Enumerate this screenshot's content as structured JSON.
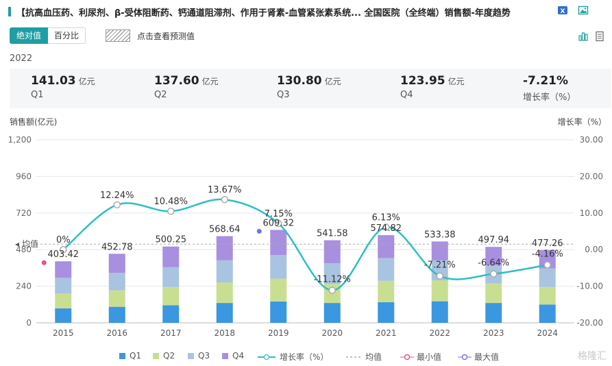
{
  "header": {
    "title": "【抗高血压药、利尿剂、β-受体阻断药、钙通道阻滞剂、作用于肾素-血管紧张素系统...   全国医院（全终端）销售额-年度趋势"
  },
  "controls": {
    "absolute_label": "绝对值",
    "percent_label": "百分比",
    "forecast_label": "点击查看预测值"
  },
  "summary": {
    "year": "2022",
    "items": [
      {
        "value": "141.03",
        "unit": "亿元",
        "label": "Q1"
      },
      {
        "value": "137.60",
        "unit": "亿元",
        "label": "Q2"
      },
      {
        "value": "130.80",
        "unit": "亿元",
        "label": "Q3"
      },
      {
        "value": "123.95",
        "unit": "亿元",
        "label": "Q4"
      },
      {
        "value": "-7.21%",
        "unit": "",
        "label": "增长率（%）"
      }
    ]
  },
  "colors": {
    "accent": "#1f9ea3",
    "q1": "#3a97e0",
    "q2": "#c8df92",
    "q3": "#a9c4e0",
    "q4": "#a98fe0",
    "growth_line": "#2bbfc4",
    "min_marker": "#e84f8b",
    "max_marker": "#7070e8"
  },
  "chart_data": {
    "type": "bar",
    "stacked": true,
    "categories": [
      "2015",
      "2016",
      "2017",
      "2018",
      "2019",
      "2020",
      "2021",
      "2022",
      "2023",
      "2024"
    ],
    "series": [
      {
        "name": "Q1",
        "values": [
          95,
          105,
          115,
          130,
          140,
          130,
          135,
          141.03,
          130,
          120
        ]
      },
      {
        "name": "Q2",
        "values": [
          98,
          108,
          120,
          135,
          150,
          125,
          140,
          137.6,
          128,
          115
        ]
      },
      {
        "name": "Q3",
        "values": [
          102,
          115,
          130,
          145,
          155,
          135,
          150,
          130.8,
          120,
          122
        ]
      },
      {
        "name": "Q4",
        "values": [
          108.42,
          124.78,
          135.25,
          158.64,
          164.32,
          151.58,
          149.82,
          123.95,
          119.94,
          120.26
        ]
      }
    ],
    "totals": [
      403.42,
      452.78,
      500.25,
      568.64,
      609.32,
      541.58,
      574.82,
      533.38,
      497.94,
      477.26
    ],
    "total_labels": [
      "403.42",
      "452.78",
      "500.25",
      "568.64",
      "609.32",
      "541.58",
      "574.82",
      "533.38",
      "497.94",
      "477.26"
    ],
    "growth": {
      "name": "增长率（%）",
      "values": [
        0,
        12.24,
        10.48,
        13.67,
        7.15,
        -11.12,
        6.13,
        -7.21,
        -6.64,
        -4.16
      ],
      "labels": [
        "0%",
        "12.24%",
        "10.48%",
        "13.67%",
        "7.15%",
        "-11.12%",
        "6.13%",
        "-7.21%",
        "-6.64%",
        "-4.16%"
      ]
    },
    "ylabel_left": "销售额(亿元)",
    "ylabel_right": "增长率（%）",
    "ylim_left": [
      0,
      1200
    ],
    "ylim_right": [
      -20,
      30
    ],
    "yticks_left": [
      "0",
      "240",
      "480",
      "720",
      "960",
      "1,200"
    ],
    "yticks_right": [
      "-20.00",
      "-10.00",
      "0.00",
      "10.00",
      "20.00",
      "30.00"
    ],
    "mean_label": "均值",
    "mean_value": 516,
    "min_index": 0,
    "max_index": 4,
    "grid": true,
    "legend": [
      {
        "key": "q1",
        "label": "Q1"
      },
      {
        "key": "q2",
        "label": "Q2"
      },
      {
        "key": "q3",
        "label": "Q3"
      },
      {
        "key": "q4",
        "label": "Q4"
      },
      {
        "key": "growth",
        "label": "增长率（%）"
      },
      {
        "key": "mean",
        "label": "均值"
      },
      {
        "key": "min",
        "label": "最小值"
      },
      {
        "key": "max",
        "label": "最大值"
      }
    ],
    "legend_position": "bottom"
  },
  "watermark": "格隆汇"
}
